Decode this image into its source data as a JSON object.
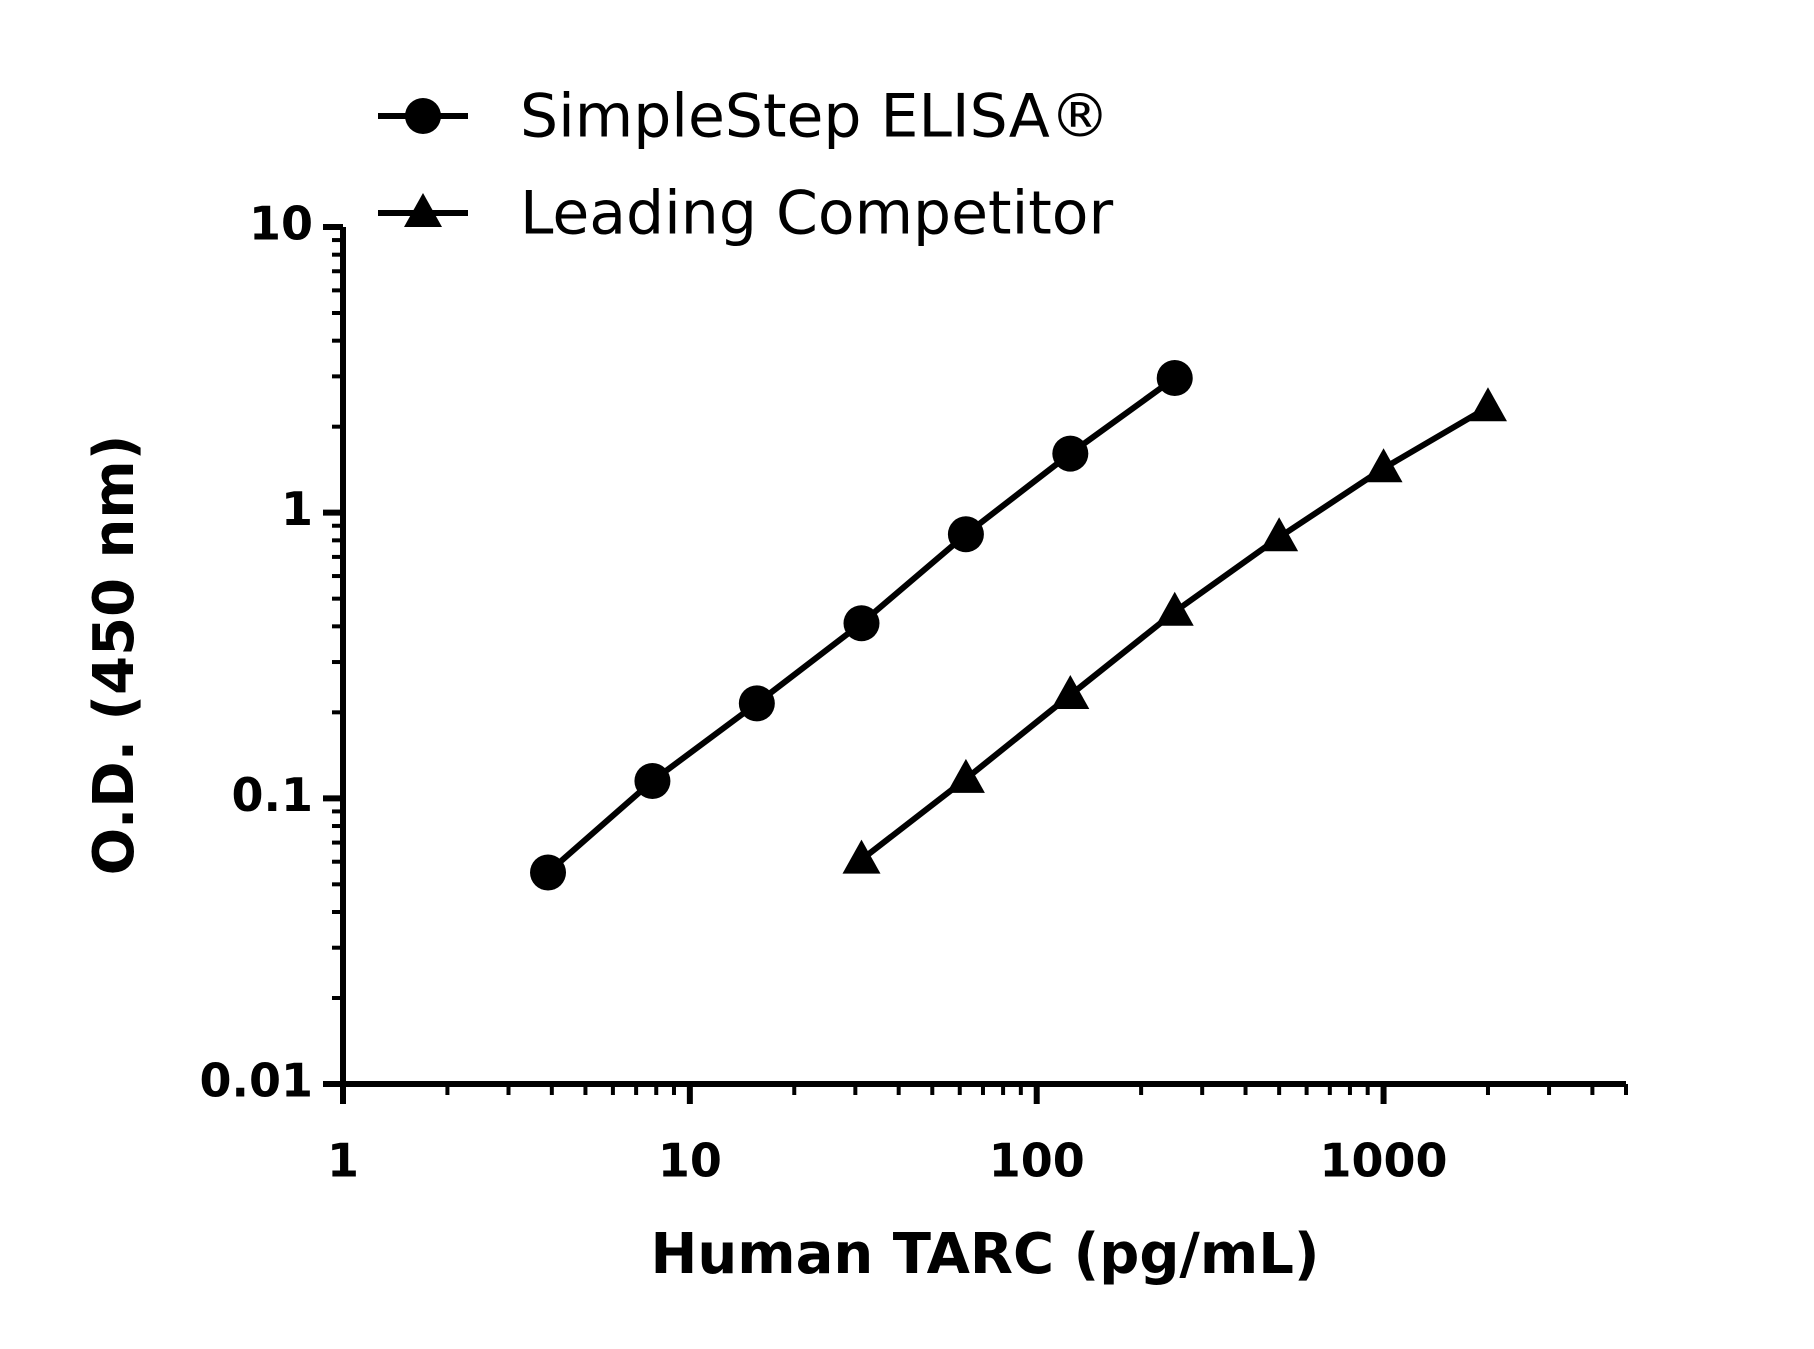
{
  "chart_data": {
    "type": "line",
    "x_label": "Human TARC (pg/mL)",
    "y_label": "O.D. (450 nm)",
    "xlog": true,
    "ylog": true,
    "xlim": [
      1,
      5000
    ],
    "ylim": [
      0.01,
      10
    ],
    "xticks": [
      1,
      10,
      100,
      1000
    ],
    "yticks": [
      0.01,
      0.1,
      1,
      10
    ],
    "legend": "top-left",
    "series": [
      {
        "name": "SimpleStep ELISA®",
        "color": "#000000",
        "marker": "circle",
        "x": [
          3.9,
          7.8,
          15.6,
          31.25,
          62.5,
          125,
          250
        ],
        "values": [
          0.055,
          0.115,
          0.215,
          0.41,
          0.84,
          1.61,
          2.96
        ]
      },
      {
        "name": "Leading Competitor",
        "color": "#000000",
        "marker": "triangle",
        "x": [
          31.25,
          62.5,
          125,
          250,
          500,
          1000,
          2000
        ],
        "values": [
          0.061,
          0.117,
          0.23,
          0.45,
          0.82,
          1.43,
          2.34
        ]
      }
    ]
  }
}
